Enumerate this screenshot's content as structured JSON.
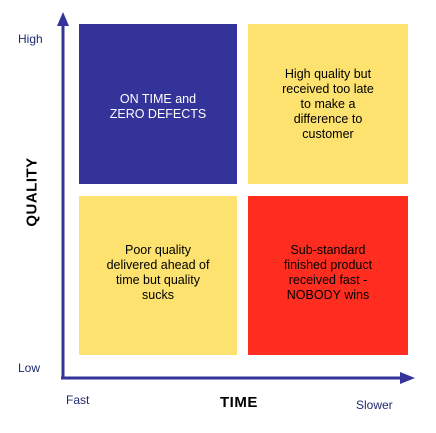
{
  "colors": {
    "axis": "#333399",
    "on_time_zero_defects": "#333399",
    "yellow": "#fde26f",
    "red": "#ff2d1f"
  },
  "axes": {
    "y_title": "QUALITY",
    "y_high": "High",
    "y_low": "Low",
    "x_title": "TIME",
    "x_fast": "Fast",
    "x_slower": "Slower"
  },
  "quadrants": {
    "top_left": "ON TIME and\nZERO DEFECTS",
    "top_right": "High quality but\nreceived too late\nto make a\ndifference to\ncustomer",
    "bottom_left": "Poor quality\ndelivered ahead of\ntime but quality\nsucks",
    "bottom_right": "Sub-standard\nfinished product\nreceived fast -\nNOBODY wins"
  }
}
